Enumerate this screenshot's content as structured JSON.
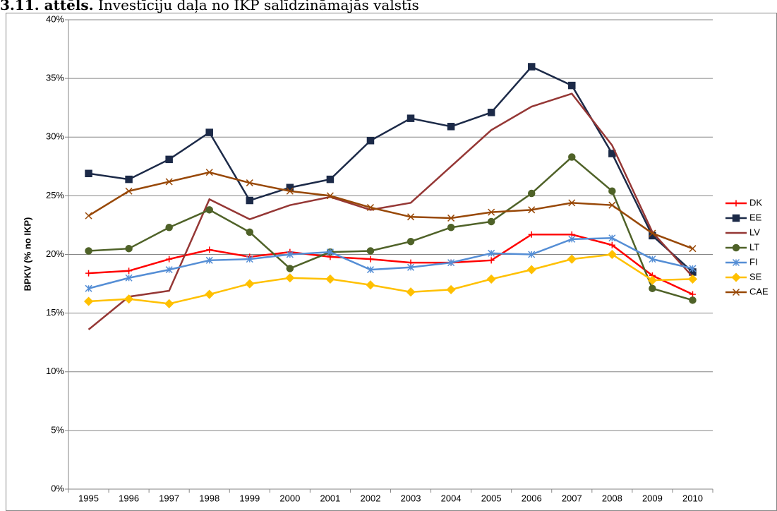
{
  "chart_data": {
    "type": "line",
    "title_number": "3.11. attēls.",
    "title": "Investīciju daļa no IKP salīdzināmajās valstīs",
    "y_label": "BPKV (% no IKP)",
    "categories": [
      "1995",
      "1996",
      "1997",
      "1998",
      "1999",
      "2000",
      "2001",
      "2002",
      "2003",
      "2004",
      "2005",
      "2006",
      "2007",
      "2008",
      "2009",
      "2010"
    ],
    "ylim": [
      0,
      40
    ],
    "yticks": [
      {
        "value": 0,
        "label": "0%"
      },
      {
        "value": 5,
        "label": "5%"
      },
      {
        "value": 10,
        "label": "10%"
      },
      {
        "value": 15,
        "label": "15%"
      },
      {
        "value": 20,
        "label": "20%"
      },
      {
        "value": 25,
        "label": "25%"
      },
      {
        "value": 30,
        "label": "30%"
      },
      {
        "value": 35,
        "label": "35%"
      },
      {
        "value": 40,
        "label": "40%"
      }
    ],
    "grid": true,
    "legend": "right",
    "series": [
      {
        "name": "DK",
        "color": "#ff0000",
        "marker": "plus",
        "values": [
          18.4,
          18.6,
          19.6,
          20.4,
          19.8,
          20.2,
          19.8,
          19.6,
          19.3,
          19.3,
          19.5,
          21.7,
          21.7,
          20.8,
          18.2,
          16.6
        ]
      },
      {
        "name": "EE",
        "color": "#1c2a48",
        "marker": "square",
        "values": [
          26.9,
          26.4,
          28.1,
          30.4,
          24.6,
          25.7,
          26.4,
          29.7,
          31.6,
          30.9,
          32.1,
          36.0,
          34.4,
          28.6,
          21.6,
          18.5
        ]
      },
      {
        "name": "LV",
        "color": "#953735",
        "marker": "none",
        "values": [
          13.6,
          16.4,
          16.9,
          24.7,
          23.0,
          24.2,
          24.9,
          23.8,
          24.4,
          27.5,
          30.6,
          32.6,
          33.7,
          29.3,
          21.9,
          18.1
        ]
      },
      {
        "name": "LT",
        "color": "#4f6228",
        "marker": "circle",
        "values": [
          20.3,
          20.5,
          22.3,
          23.8,
          21.9,
          18.8,
          20.2,
          20.3,
          21.1,
          22.3,
          22.8,
          25.2,
          28.3,
          25.4,
          17.1,
          16.1
        ]
      },
      {
        "name": "FI",
        "color": "#558ed5",
        "marker": "asterisk",
        "values": [
          17.1,
          18.0,
          18.7,
          19.5,
          19.6,
          20.0,
          20.2,
          18.7,
          18.9,
          19.3,
          20.1,
          20.0,
          21.3,
          21.4,
          19.6,
          18.8
        ]
      },
      {
        "name": "SE",
        "color": "#ffc000",
        "marker": "diamond",
        "values": [
          16.0,
          16.2,
          15.8,
          16.6,
          17.5,
          18.0,
          17.9,
          17.4,
          16.8,
          17.0,
          17.9,
          18.7,
          19.6,
          20.0,
          17.8,
          17.9
        ]
      },
      {
        "name": "CAE",
        "color": "#984807",
        "marker": "x",
        "values": [
          23.3,
          25.4,
          26.2,
          27.0,
          26.1,
          25.4,
          25.0,
          24.0,
          23.2,
          23.1,
          23.6,
          23.8,
          24.4,
          24.2,
          21.8,
          20.5
        ]
      }
    ]
  }
}
